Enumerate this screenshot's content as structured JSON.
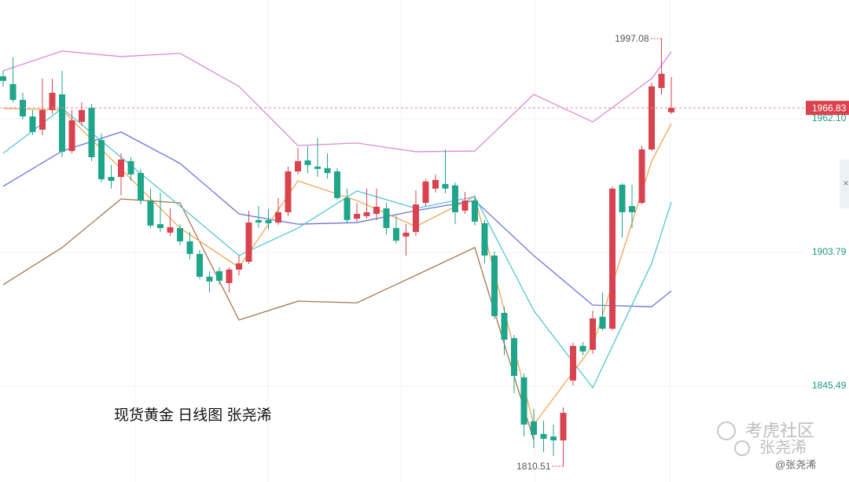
{
  "chart_data": {
    "type": "candlestick",
    "annotation": "现货黄金 日线图  张尧浠",
    "watermark": [
      "考虎社区",
      "张尧浠",
      "@张尧浠"
    ],
    "ylim": [
      1803.65,
      2013.87
    ],
    "yticks": [
      {
        "value": 1962.1,
        "label": "1962.10"
      },
      1903.79,
      1845.49
    ],
    "up_color": "#d9434f",
    "down_color": "#1fa58a",
    "open": [
      1980.6,
      1977.2,
      1970.3,
      1963.1,
      1957.3,
      1965.9,
      1972.7,
      1948.0,
      1960.7,
      1966.9,
      1952.8,
      1936.7,
      1936.7,
      1943.6,
      1938.4,
      1926.4,
      1916.1,
      1912.4,
      1914.4,
      1908.6,
      1903.1,
      1893.2,
      1895.6,
      1890.4,
      1896.3,
      1899.7,
      1917.9,
      1917.9,
      1916.8,
      1921.3,
      1939.1,
      1943.9,
      1941.2,
      1940.5,
      1939.1,
      1927.5,
      1918.5,
      1919.6,
      1920.6,
      1923.0,
      1914.4,
      1910.7,
      1912.7,
      1925.4,
      1931.6,
      1933.6,
      1933.0,
      1922.0,
      1926.4,
      1916.5,
      1902.4,
      1877.4,
      1866.4,
      1849.3,
      1830.1,
      1824.6,
      1823.5,
      1821.8,
      1847.9,
      1863.0,
      1861.3,
      1875.7,
      1870.5,
      1933.3,
      1924.0,
      1925.4,
      1948.7,
      1975.5,
      1964.9
    ],
    "high": [
      1983.0,
      1988.9,
      1973.4,
      1965.9,
      1979.6,
      1979.6,
      1983.0,
      1965.9,
      1969.3,
      1968.6,
      1955.6,
      1941.9,
      1947.0,
      1945.3,
      1940.2,
      1931.6,
      1929.9,
      1923.0,
      1916.1,
      1912.7,
      1904.8,
      1895.6,
      1897.3,
      1897.3,
      1902.4,
      1922.0,
      1924.0,
      1922.7,
      1927.5,
      1941.2,
      1949.4,
      1950.1,
      1953.9,
      1947.0,
      1940.5,
      1931.6,
      1925.4,
      1931.6,
      1931.6,
      1925.4,
      1919.6,
      1916.1,
      1930.9,
      1935.7,
      1937.8,
      1948.7,
      1934.3,
      1930.2,
      1928.8,
      1917.9,
      1904.1,
      1880.1,
      1867.8,
      1851.0,
      1835.5,
      1830.4,
      1828.7,
      1836.2,
      1864.4,
      1864.7,
      1878.4,
      1886.3,
      1932.6,
      1934.0,
      1933.3,
      1950.4,
      1977.9,
      1997.08,
      1980.3
    ],
    "low": [
      1976.2,
      1969.3,
      1961.8,
      1954.9,
      1954.9,
      1964.2,
      1945.3,
      1947.0,
      1959.0,
      1943.6,
      1934.3,
      1931.6,
      1928.8,
      1935.0,
      1924.7,
      1914.4,
      1912.7,
      1911.0,
      1906.9,
      1900.7,
      1892.1,
      1886.3,
      1889.7,
      1886.3,
      1893.8,
      1898.7,
      1914.4,
      1913.7,
      1915.8,
      1919.6,
      1937.8,
      1938.4,
      1936.7,
      1936.0,
      1926.8,
      1916.5,
      1917.2,
      1918.5,
      1917.9,
      1911.7,
      1907.6,
      1902.4,
      1911.0,
      1924.0,
      1929.9,
      1929.5,
      1916.1,
      1920.6,
      1915.5,
      1899.0,
      1874.6,
      1858.9,
      1842.4,
      1823.5,
      1818.4,
      1816.7,
      1815.0,
      1810.51,
      1845.8,
      1858.9,
      1859.5,
      1869.8,
      1869.8,
      1910.3,
      1914.4,
      1924.7,
      1948.0,
      1972.7,
      1964.2
    ],
    "close": [
      1978.6,
      1970.3,
      1963.1,
      1956.3,
      1965.9,
      1973.4,
      1947.7,
      1961.4,
      1965.9,
      1945.3,
      1935.7,
      1935.0,
      1944.3,
      1937.8,
      1926.4,
      1915.5,
      1914.4,
      1914.8,
      1908.6,
      1903.1,
      1893.2,
      1891.1,
      1891.4,
      1896.3,
      1899.0,
      1916.8,
      1916.8,
      1916.5,
      1921.3,
      1939.1,
      1943.6,
      1941.9,
      1940.2,
      1938.4,
      1927.5,
      1917.9,
      1920.6,
      1921.3,
      1923.7,
      1914.4,
      1908.9,
      1912.4,
      1924.7,
      1934.7,
      1935.4,
      1931.6,
      1921.3,
      1926.4,
      1917.2,
      1902.4,
      1876.0,
      1865.7,
      1849.9,
      1828.7,
      1824.2,
      1822.5,
      1821.8,
      1833.8,
      1863.0,
      1860.6,
      1875.0,
      1870.5,
      1931.6,
      1921.3,
      1921.3,
      1948.7,
      1976.2,
      1981.7,
      1966.83
    ],
    "lines": {
      "x": [
        0,
        6,
        12,
        18,
        24,
        30,
        36,
        42,
        48,
        54,
        60,
        66,
        68
      ],
      "series": [
        {
          "color": "#d98ad9",
          "values": [
            1983.0,
            1991.6,
            1989.2,
            1990.6,
            1976.2,
            1950.4,
            1951.5,
            1947.7,
            1948.0,
            1972.7,
            1960.7,
            1979.6,
            1991.3
          ]
        },
        {
          "color": "#a8754c",
          "values": [
            1889.7,
            1905.9,
            1927.1,
            1925.4,
            1874.3,
            1882.5,
            1881.8,
            1893.8,
            1905.9,
            1821.8,
            null,
            null,
            null
          ]
        },
        {
          "color": "#6a74dc",
          "values": [
            1932.6,
            1948.0,
            1956.3,
            1942.6,
            1920.6,
            1916.1,
            1916.8,
            1922.0,
            1926.4,
            1902.4,
            1880.8,
            1880.1,
            1887.0
          ]
        },
        {
          "color": "#52c6d8",
          "values": [
            1947.0,
            1966.6,
            1945.3,
            1924.0,
            1902.4,
            1914.4,
            1930.6,
            1923.0,
            1928.1,
            1878.4,
            1844.8,
            1899.0,
            1925.7
          ]
        },
        {
          "color": "#f2a456",
          "values": [
            1966.6,
            1965.9,
            1940.2,
            1914.4,
            1897.3,
            1935.0,
            1926.4,
            1915.1,
            1928.1,
            1828.7,
            1863.0,
            1943.6,
            1960.0
          ]
        }
      ]
    }
  }
}
